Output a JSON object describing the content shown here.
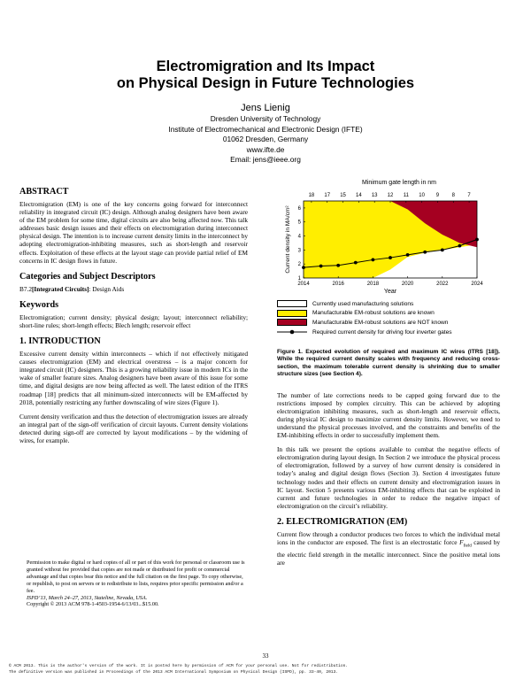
{
  "title_line1": "Electromigration and Its Impact",
  "title_line2": "on Physical Design in Future Technologies",
  "author": {
    "name": "Jens Lienig",
    "affiliation": "Dresden University of Technology",
    "institute": "Institute of Electromechanical and Electronic Design (IFTE)",
    "city": "01062 Dresden, Germany",
    "web": "www.ifte.de",
    "email": "Email: jens@ieee.org"
  },
  "abstract": {
    "heading": "ABSTRACT",
    "text": "Electromigration (EM) is one of the key concerns going forward for interconnect reliability in integrated circuit (IC) design. Although analog designers have been aware of the EM problem for some time, digital circuits are also being affected now. This talk addresses basic design issues and their effects on electromigration during interconnect physical design. The intention is to increase current density limits in the interconnect by adopting electromigration-inhibiting measures, such as short-length and reservoir effects. Exploitation of these effects at the layout stage can provide partial relief of EM concerns in IC design flows in future."
  },
  "categories": {
    "heading": "Categories and Subject Descriptors",
    "code": "B7.2",
    "bold": "[Integrated Circuits]",
    "text": ": Design Aids"
  },
  "keywords": {
    "heading": "Keywords",
    "text": "Electromigration; current density; physical design; layout; interconnect reliability; short-line rules; short-length effects; Blech length; reservoir effect"
  },
  "intro": {
    "heading": "1.  INTRODUCTION",
    "p1": "Excessive current density within interconnects – which if not effectively mitigated causes electromigration (EM) and electrical overstress – is a major concern for integrated circuit (IC) designers. This is a growing reliability issue in modern ICs in the wake of smaller feature sizes. Analog designers have been aware of this issue for some time, and digital designs are now being affected as well. The latest edition of the ITRS roadmap [18] predicts that all minimum-sized interconnects will be EM-affected by 2018, potentially restricting any further downscaling of wire sizes (Figure 1).",
    "p2": "Current density verification and thus the detection of electromigration issues are already an integral part of the sign-off verification of circuit layouts. Current density violations detected during sign-off are corrected by layout modifications – by the widening of wires, for example."
  },
  "permission": {
    "text": "Permission to make digital or hard copies of all or part of this work for personal or classroom use is granted without fee provided that copies are not made or distributed for profit or commercial advantage and that copies bear this notice and the full citation on the first page. To copy otherwise, or republish, to post on servers or to redistribute to lists, requires prior specific permission and/or a fee.",
    "conf": "ISPD’13, March 24–27, 2013, Stateline, Nevada, USA.",
    "copyright": "Copyright © 2013 ACM  978-1-4503-1954-6/13/03...$15.00."
  },
  "chart_data": {
    "type": "area",
    "top_axis_label": "Minimum gate length in nm",
    "top_ticks": [
      "18",
      "17",
      "15",
      "14",
      "13",
      "12",
      "11",
      "10",
      "9",
      "8",
      "7"
    ],
    "xlabel": "Year",
    "ylabel": "Current density in MA/cm²",
    "x_ticks": [
      "2014",
      "2016",
      "2018",
      "2020",
      "2022",
      "2024"
    ],
    "y_ticks": [
      "1",
      "2",
      "3",
      "4",
      "5",
      "6"
    ],
    "xlim": [
      2014,
      2024
    ],
    "ylim": [
      1,
      6.5
    ],
    "colors": {
      "known": "#ffee00",
      "not_known": "#a50021",
      "line": "#000000"
    },
    "series": [
      {
        "name": "Required current density for driving four inverter gates",
        "x": [
          2014,
          2015,
          2016,
          2017,
          2018,
          2019,
          2020,
          2021,
          2022,
          2023,
          2024
        ],
        "y": [
          1.75,
          1.85,
          1.9,
          2.1,
          2.3,
          2.45,
          2.65,
          2.85,
          3.0,
          3.3,
          3.75
        ]
      }
    ],
    "boundary_known": {
      "x": [
        2014,
        2016,
        2018,
        2019,
        2020,
        2021,
        2022,
        2023,
        2024
      ],
      "y": [
        1.0,
        1.0,
        1.0,
        1.6,
        2.5,
        2.8,
        3.0,
        3.2,
        3.4
      ]
    },
    "boundary_not_known": {
      "x": [
        2014,
        2018,
        2019,
        2019.5,
        2020,
        2021,
        2022,
        2023,
        2024
      ],
      "y": [
        6.5,
        6.5,
        6.5,
        6.2,
        5.9,
        4.9,
        4.1,
        3.5,
        3.2
      ]
    },
    "legend": [
      "Currently used manufacturing solutions",
      "Manufacturable EM-robust solutions are known",
      "Manufacturable EM-robust solutions are NOT known",
      "Required current density for driving four inverter gates"
    ]
  },
  "figure": {
    "caption": "Figure 1.  Expected evolution of required and maximum IC wires (ITRS [18]). While the required current density scales with frequency and reducing cross-section, the maximum tolerable current density is shrinking due to smaller structure sizes (see Section 4)."
  },
  "right": {
    "p1": "The number of late corrections needs to be capped going forward due to the restrictions imposed by complex circuitry. This can be achieved by adopting electromigration inhibiting measures, such as short-length and reservoir effects, during physical IC design to maximize current density limits. However, we need to understand the physical processes involved, and the constraints and benefits of the EM-inhibiting effects in order to successfully implement them.",
    "p2": "In this talk we present the options available to combat the negative effects of electromigration during layout design. In Section 2 we introduce the physical process of electromigration, followed by a survey of how current density is considered in today’s analog and digital design flows (Section 3). Section 4 investigates future technology nodes and their effects on current density and electromigration issues in IC layout. Section 5 presents various EM-inhibiting effects that can be exploited in current and future technologies in order to reduce the negative impact of electromigration on the circuit’s reliability.",
    "h2": "2.  ELECTROMIGRATION (EM)",
    "p3a": "Current flow through a conductor produces two forces to which the individual metal ions in the conductor are exposed. The first is an electrostatic force ",
    "p3var": "F",
    "p3sub": "field",
    "p3b": " caused by the electric field strength in the metallic interconnect. Since the positive metal ions are"
  },
  "page_number": "33",
  "footer": {
    "line1": "© ACM 2013. This is the author's version of the work. It is posted here by permission of ACM for your personal use. Not for redistribution.",
    "line2": "The definitive version was published in Proceedings of the 2013 ACM International Symposium on Physical Design (ISPD), pp. 33-40, 2013."
  }
}
